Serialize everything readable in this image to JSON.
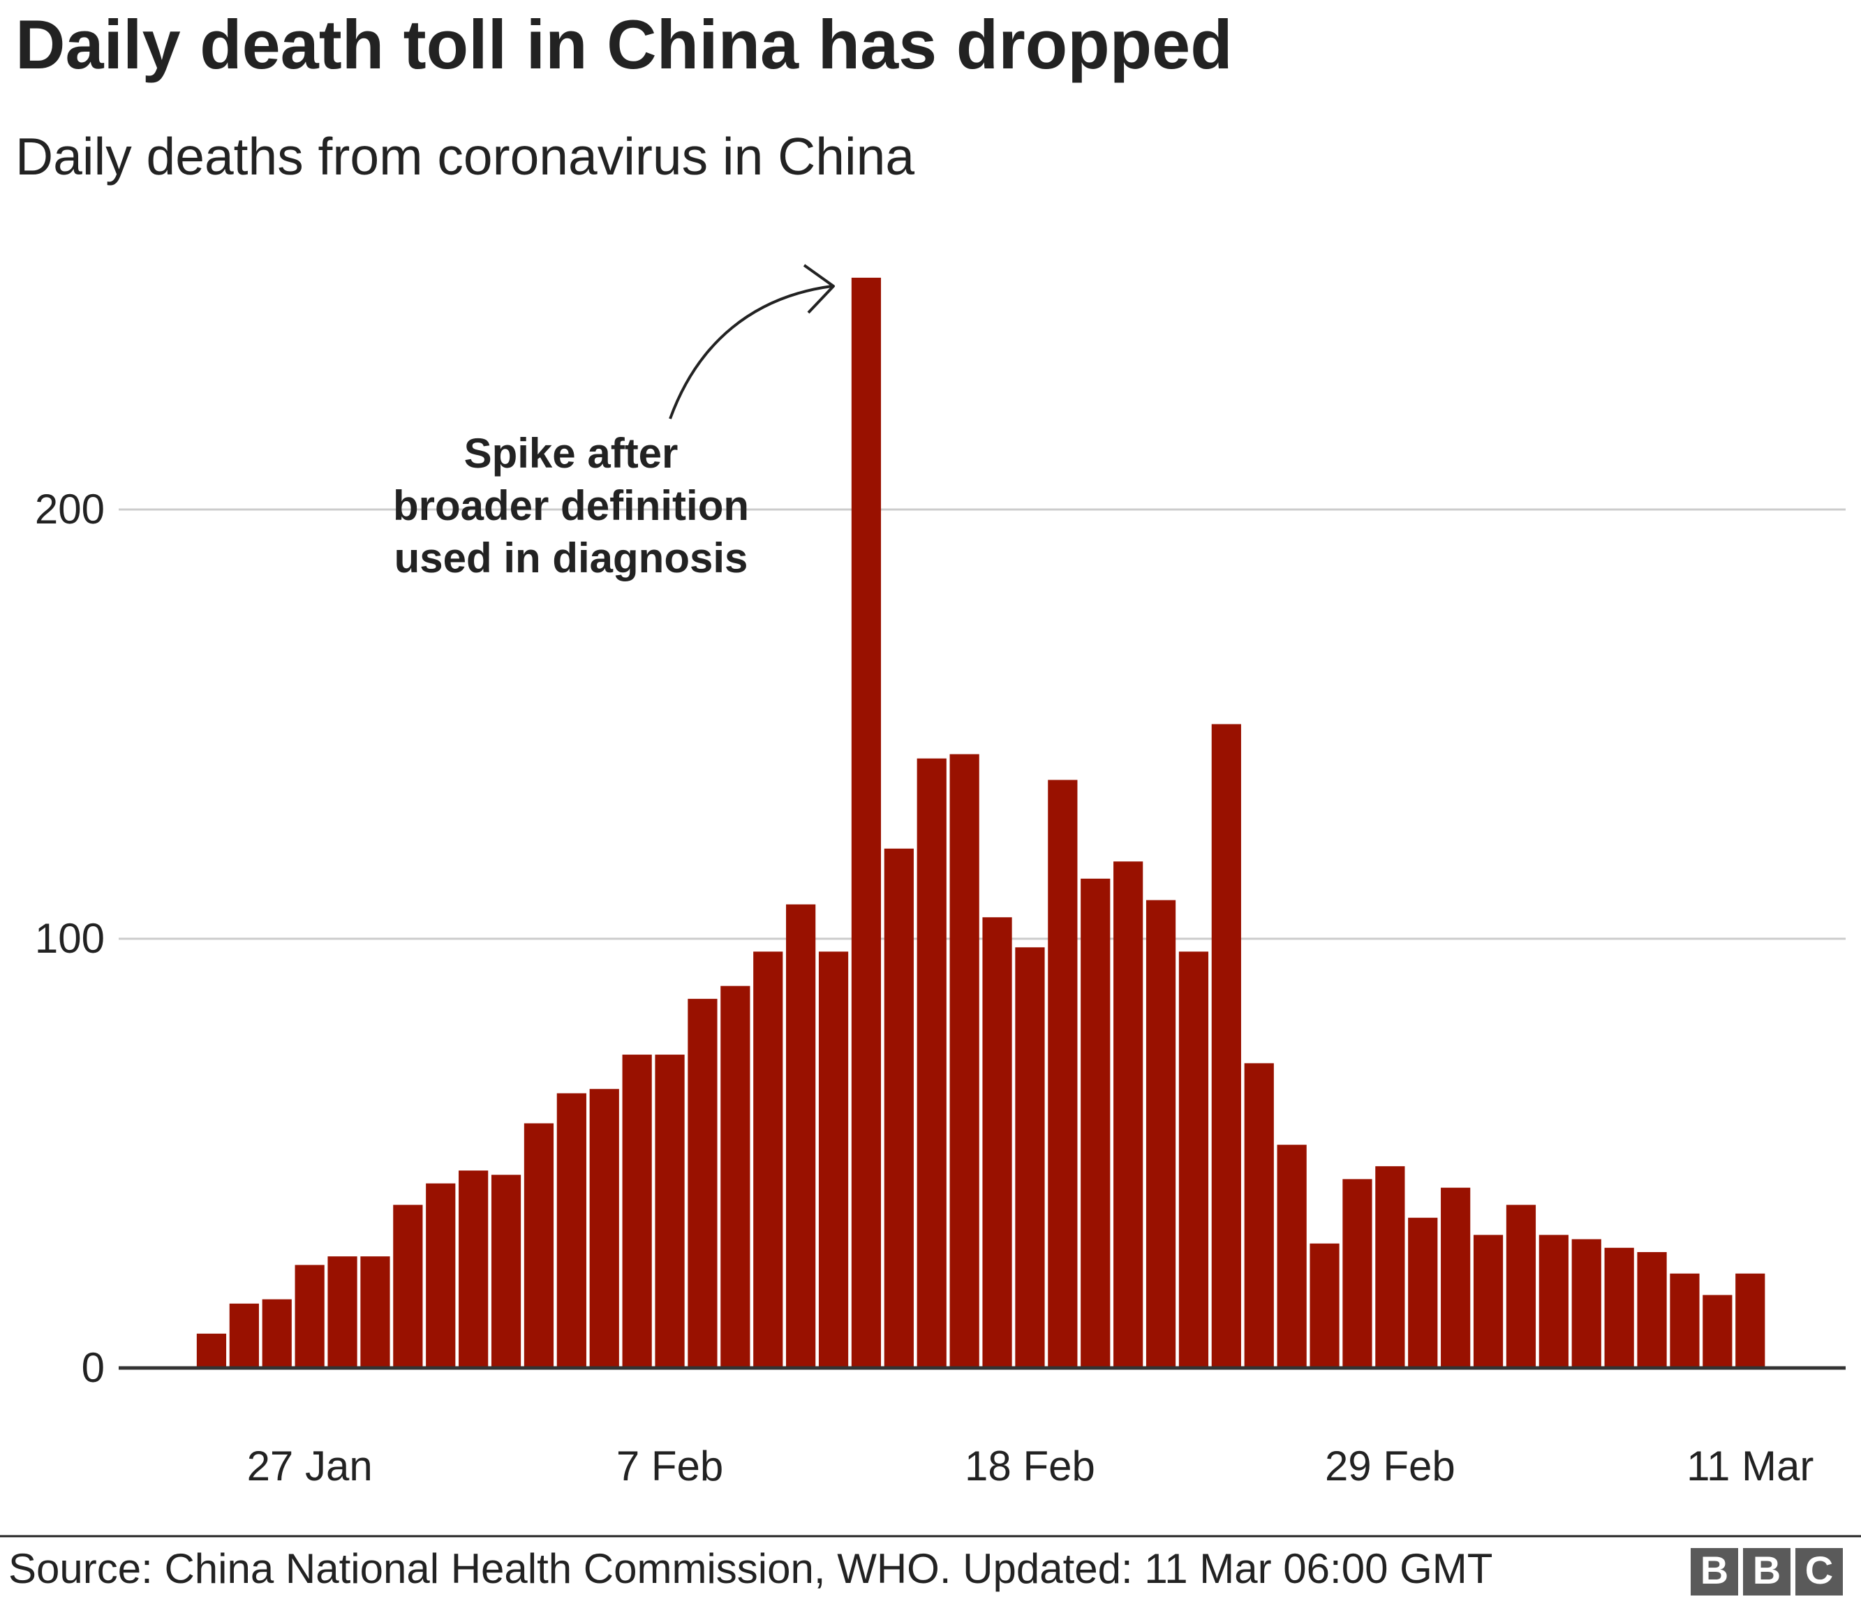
{
  "chart_data": {
    "type": "bar",
    "title": "Daily death toll in China has dropped",
    "subtitle": "Daily deaths from coronavirus in China",
    "annotation": [
      "Spike after",
      "broader definition",
      "used in diagnosis"
    ],
    "source": "Source: China National Health Commission, WHO. Updated: 11 Mar 06:00 GMT",
    "logo": [
      "B",
      "B",
      "C"
    ],
    "categories": [
      null,
      null,
      null,
      "27 Jan",
      null,
      null,
      null,
      null,
      null,
      null,
      null,
      null,
      null,
      null,
      "7 Feb",
      null,
      null,
      null,
      null,
      null,
      null,
      null,
      null,
      null,
      null,
      "18 Feb",
      null,
      null,
      null,
      null,
      null,
      null,
      null,
      null,
      null,
      null,
      "29 Feb",
      null,
      null,
      null,
      null,
      null,
      null,
      null,
      null,
      null,
      null,
      "11 Mar"
    ],
    "values": [
      8,
      15,
      16,
      24,
      26,
      26,
      38,
      43,
      46,
      45,
      57,
      64,
      65,
      73,
      73,
      86,
      89,
      97,
      108,
      97,
      254,
      121,
      142,
      143,
      105,
      98,
      137,
      114,
      118,
      109,
      97,
      150,
      71,
      52,
      29,
      44,
      47,
      35,
      42,
      31,
      38,
      31,
      30,
      28,
      27,
      22,
      17,
      22
    ],
    "color": "#991100",
    "ylim": [
      0,
      260
    ],
    "yticks": [
      0,
      100,
      200
    ],
    "grid": true
  }
}
